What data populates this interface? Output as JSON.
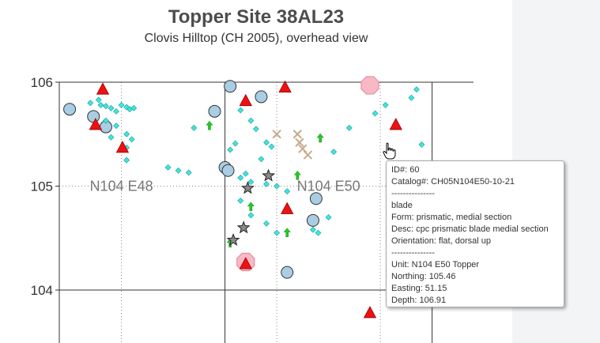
{
  "title": "Topper Site 38AL23",
  "subtitle": "Clovis Hilltop (CH 2005), overhead view",
  "colors": {
    "triangle": "#ee1111",
    "circle": "#a9cde3",
    "diamond": "#3ee6e0",
    "arrow": "#22cc22",
    "cross": "#c8aa8a",
    "star": "#888888",
    "octagon": "#f8b8c4",
    "panel": "#f3f4f6"
  },
  "chart_data": {
    "type": "scatter",
    "xlim": [
      47.4,
      51.4
    ],
    "ylim": [
      103.5,
      106.05
    ],
    "yticks": [
      "106",
      "105",
      "104"
    ],
    "grid": "dotted at 0.5 units, solid at 1.0 units",
    "unit_labels": [
      {
        "text": "N104 E48",
        "x": 48.0,
        "y": 105.0
      },
      {
        "text": "N104 E50",
        "x": 50.0,
        "y": 105.0
      }
    ],
    "series": [
      {
        "marker": "triangle",
        "points": [
          [
            47.75,
            105.59
          ],
          [
            47.82,
            105.93
          ],
          [
            48.01,
            105.37
          ],
          [
            49.2,
            105.82
          ],
          [
            49.58,
            105.95
          ],
          [
            49.6,
            104.78
          ],
          [
            50.65,
            105.59
          ],
          [
            50.4,
            103.78
          ],
          [
            49.2,
            104.25
          ]
        ]
      },
      {
        "marker": "circle",
        "points": [
          [
            47.5,
            105.74
          ],
          [
            47.73,
            105.67
          ],
          [
            47.85,
            105.57
          ],
          [
            48.9,
            105.72
          ],
          [
            49.05,
            105.96
          ],
          [
            49.35,
            105.86
          ],
          [
            49.0,
            105.18
          ],
          [
            49.03,
            105.15
          ],
          [
            49.6,
            104.17
          ],
          [
            49.85,
            104.67
          ],
          [
            49.88,
            104.88
          ]
        ]
      },
      {
        "marker": "diamond",
        "points": [
          [
            47.7,
            105.8
          ],
          [
            47.78,
            105.83
          ],
          [
            47.8,
            105.78
          ],
          [
            47.85,
            105.77
          ],
          [
            47.9,
            105.75
          ],
          [
            47.95,
            105.72
          ],
          [
            48.0,
            105.78
          ],
          [
            48.05,
            105.76
          ],
          [
            48.08,
            105.74
          ],
          [
            48.12,
            105.75
          ],
          [
            47.85,
            105.63
          ],
          [
            47.95,
            105.58
          ],
          [
            48.05,
            105.5
          ],
          [
            48.1,
            105.45
          ],
          [
            47.9,
            105.47
          ],
          [
            48.05,
            105.25
          ],
          [
            48.45,
            105.18
          ],
          [
            48.55,
            105.15
          ],
          [
            48.65,
            105.13
          ],
          [
            48.7,
            105.56
          ],
          [
            48.05,
            105.37
          ],
          [
            49.05,
            105.35
          ],
          [
            49.1,
            105.41
          ],
          [
            49.15,
            105.73
          ],
          [
            49.25,
            105.63
          ],
          [
            49.3,
            105.55
          ],
          [
            49.4,
            105.42
          ],
          [
            49.45,
            105.38
          ],
          [
            49.35,
            105.26
          ],
          [
            49.2,
            105.12
          ],
          [
            49.15,
            105.08
          ],
          [
            49.25,
            105.04
          ],
          [
            49.4,
            105.02
          ],
          [
            49.5,
            105.0
          ],
          [
            49.6,
            104.95
          ],
          [
            49.15,
            104.86
          ],
          [
            49.25,
            104.72
          ],
          [
            49.4,
            104.64
          ],
          [
            49.5,
            104.55
          ],
          [
            49.85,
            104.58
          ],
          [
            49.9,
            104.55
          ],
          [
            50.0,
            104.7
          ],
          [
            50.05,
            105.33
          ],
          [
            50.2,
            105.56
          ],
          [
            50.45,
            105.7
          ],
          [
            50.55,
            105.78
          ],
          [
            50.8,
            105.85
          ],
          [
            50.85,
            105.93
          ],
          [
            50.9,
            105.4
          ],
          [
            50.78,
            105.0
          ]
        ]
      },
      {
        "marker": "arrow",
        "points": [
          [
            48.85,
            105.58
          ],
          [
            49.05,
            104.45
          ],
          [
            49.25,
            104.8
          ],
          [
            49.6,
            104.55
          ],
          [
            49.7,
            105.1
          ],
          [
            49.92,
            105.46
          ]
        ]
      },
      {
        "marker": "cross",
        "points": [
          [
            49.5,
            105.5
          ],
          [
            49.7,
            105.5
          ],
          [
            49.72,
            105.42
          ],
          [
            49.75,
            105.36
          ],
          [
            49.8,
            105.3
          ]
        ]
      },
      {
        "marker": "star",
        "points": [
          [
            49.08,
            104.48
          ],
          [
            49.18,
            104.6
          ],
          [
            49.22,
            104.98
          ],
          [
            49.42,
            105.1
          ]
        ]
      },
      {
        "marker": "octagon",
        "points": [
          [
            50.4,
            105.97
          ],
          [
            49.2,
            104.27
          ]
        ]
      }
    ]
  },
  "tooltip": {
    "id": "ID#: 60",
    "catalog": "Catalog#: CH05N104E50-10-21",
    "sep1": "---------------",
    "type": "blade",
    "form": "Form: prismatic, medial section",
    "desc": "Desc: cpc prismatic blade medial section",
    "orientation": "Orientation: flat, dorsal up",
    "sep2": "---------------",
    "unit": "Unit: N104 E50 Topper",
    "northing": "Northing: 105.46",
    "easting": "Easting: 51.15",
    "depth": "Depth: 106.91"
  }
}
